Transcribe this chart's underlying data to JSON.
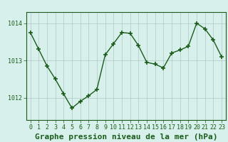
{
  "x": [
    0,
    1,
    2,
    3,
    4,
    5,
    6,
    7,
    8,
    9,
    10,
    11,
    12,
    13,
    14,
    15,
    16,
    17,
    18,
    19,
    20,
    21,
    22,
    23
  ],
  "y": [
    1013.75,
    1013.3,
    1012.85,
    1012.5,
    1012.1,
    1011.72,
    1011.9,
    1012.05,
    1012.22,
    1013.15,
    1013.45,
    1013.75,
    1013.73,
    1013.4,
    1012.95,
    1012.9,
    1012.8,
    1013.2,
    1013.28,
    1013.38,
    1014.0,
    1013.85,
    1013.55,
    1013.1
  ],
  "line_color": "#1a5c1a",
  "marker_color": "#1a5c1a",
  "bg_color": "#d8f0ec",
  "plot_bg_color": "#d8f0ec",
  "grid_color": "#b0c8c4",
  "title": "Graphe pression niveau de la mer (hPa)",
  "ylim": [
    1011.4,
    1014.3
  ],
  "yticks": [
    1012,
    1013,
    1014
  ],
  "xlim": [
    -0.5,
    23.5
  ],
  "tick_fontsize": 6,
  "title_fontsize": 8,
  "axis_label_color": "#1a5c1a"
}
